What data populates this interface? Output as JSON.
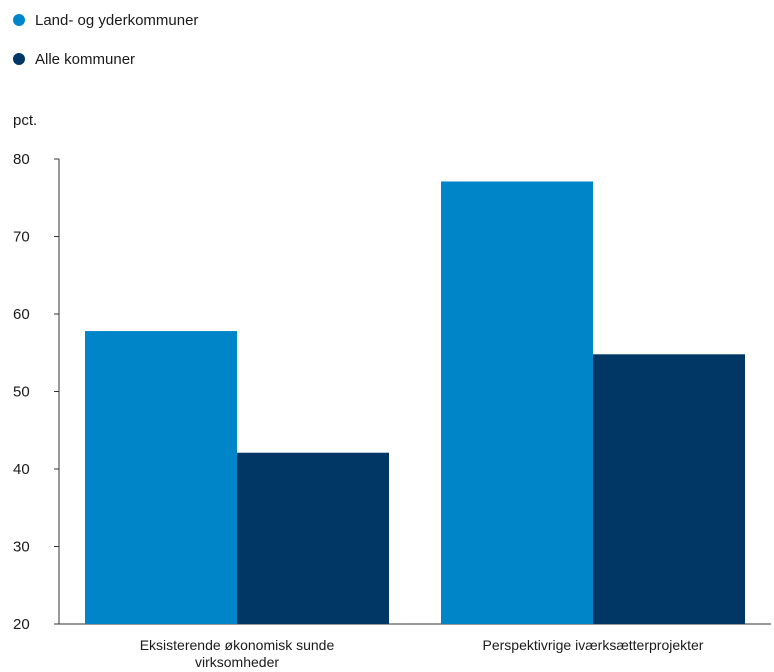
{
  "chart_data": {
    "type": "bar",
    "categories": [
      [
        "Eksisterende økonomisk sunde",
        "virksomheder"
      ],
      [
        "Perspektivrige iværksætterprojekter"
      ]
    ],
    "series": [
      {
        "name": "Land- og yderkommuner",
        "color": "#0086c8",
        "values": [
          57.8,
          77.1
        ]
      },
      {
        "name": "Alle kommuner",
        "color": "#003764",
        "values": [
          42.1,
          54.8
        ]
      }
    ],
    "ylabel": "pct.",
    "ylim": [
      20,
      80
    ],
    "yticks": [
      20,
      30,
      40,
      50,
      60,
      70,
      80
    ],
    "grid": false,
    "legend_position": "top-left"
  }
}
